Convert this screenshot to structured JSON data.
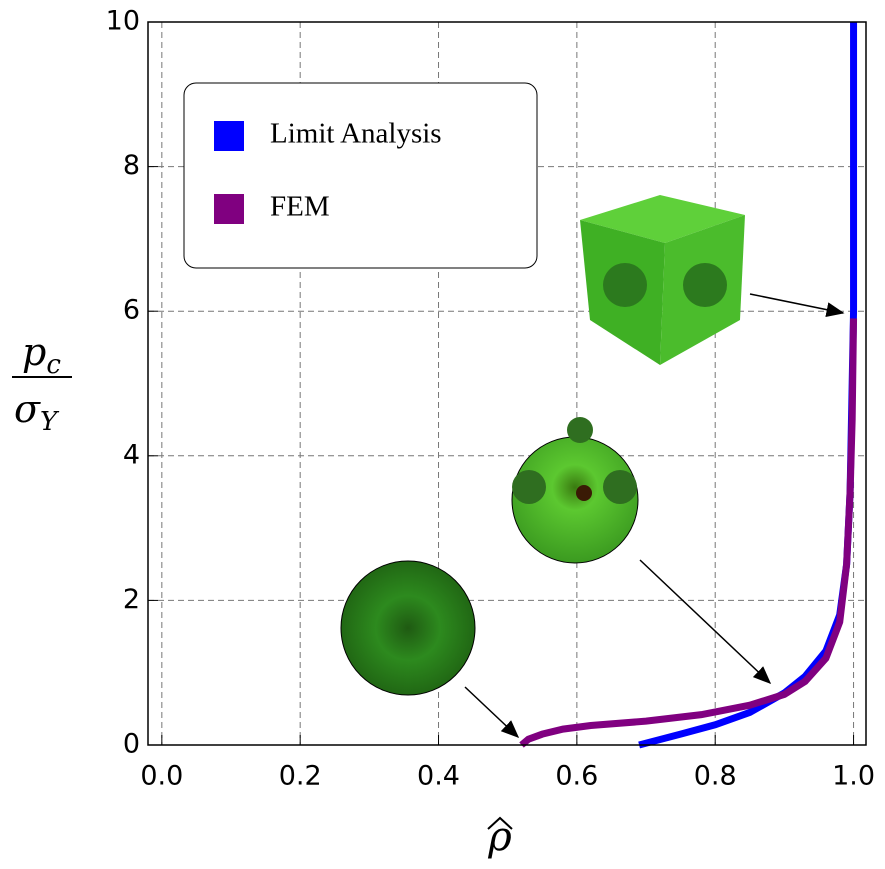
{
  "chart_data": {
    "type": "line",
    "x_label": "ρ",
    "y_label": {
      "numerator": "p",
      "numerator_sub": "c",
      "denominator": "σ",
      "denominator_sub": "Y"
    },
    "series": [
      {
        "name": "Limit Analysis",
        "color": "#0000ff",
        "x": [
          0.69,
          0.75,
          0.8,
          0.85,
          0.9,
          0.93,
          0.96,
          0.98,
          0.99,
          0.995,
          0.998,
          1.0,
          1.0
        ],
        "values": [
          0,
          0.15,
          0.28,
          0.45,
          0.72,
          0.95,
          1.3,
          1.8,
          2.5,
          3.5,
          5,
          6,
          10
        ]
      },
      {
        "name": "FEM",
        "color": "#800080",
        "x": [
          0.52,
          0.53,
          0.55,
          0.58,
          0.62,
          0.7,
          0.78,
          0.85,
          0.9,
          0.93,
          0.96,
          0.98,
          0.99,
          0.995,
          0.998,
          1.0
        ],
        "values": [
          0,
          0.08,
          0.15,
          0.22,
          0.27,
          0.33,
          0.42,
          0.55,
          0.7,
          0.88,
          1.2,
          1.7,
          2.5,
          3.5,
          4.5,
          5.9
        ]
      }
    ],
    "xlim": [
      -0.02,
      1.018
    ],
    "ylim": [
      0,
      10
    ],
    "xticks": [
      {
        "value": 0,
        "label": "0.0"
      },
      {
        "value": 0.2,
        "label": "0.2"
      },
      {
        "value": 0.4,
        "label": "0.4"
      },
      {
        "value": 0.6,
        "label": "0.6"
      },
      {
        "value": 0.8,
        "label": "0.8"
      },
      {
        "value": 1,
        "label": "1.0"
      }
    ],
    "yticks": [
      0,
      2,
      4,
      6,
      8,
      10
    ],
    "grid": true,
    "legend": "upper left"
  }
}
